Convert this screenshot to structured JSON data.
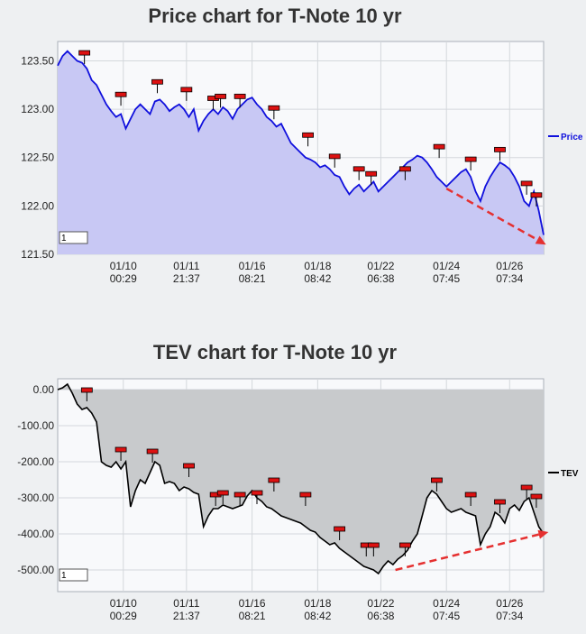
{
  "chart_data": [
    {
      "type": "area",
      "title": "Price chart for T-Note 10 yr",
      "legend": "Price",
      "legend_position": "right",
      "line_color": "#1010dd",
      "fill_color": "#c8c8f4",
      "ylim": [
        121.5,
        123.7
      ],
      "yticks": [
        "123.50",
        "123.00",
        "122.50",
        "122.00",
        "121.50"
      ],
      "ytick_values": [
        123.5,
        123.0,
        122.5,
        122.0,
        121.5
      ],
      "xlim": [
        0,
        100
      ],
      "xticks": [
        {
          "pos": 13.5,
          "date": "01/10",
          "time": "00:29"
        },
        {
          "pos": 26.5,
          "date": "01/11",
          "time": "21:37"
        },
        {
          "pos": 40.0,
          "date": "01/16",
          "time": "08:21"
        },
        {
          "pos": 53.5,
          "date": "01/18",
          "time": "08:42"
        },
        {
          "pos": 66.5,
          "date": "01/22",
          "time": "06:38"
        },
        {
          "pos": 80.0,
          "date": "01/24",
          "time": "07:45"
        },
        {
          "pos": 93.0,
          "date": "01/26",
          "time": "07:34"
        }
      ],
      "x": [
        0,
        1,
        2,
        3,
        4,
        5,
        6,
        7,
        8,
        9,
        10,
        11,
        12,
        13,
        14,
        15,
        16,
        17,
        18,
        19,
        20,
        21,
        22,
        23,
        24,
        25,
        26,
        27,
        28,
        29,
        30,
        31,
        32,
        33,
        34,
        35,
        36,
        37,
        38,
        39,
        40,
        41,
        42,
        43,
        44,
        45,
        46,
        47,
        48,
        49,
        50,
        51,
        52,
        53,
        54,
        55,
        56,
        57,
        58,
        59,
        60,
        61,
        62,
        63,
        64,
        65,
        66,
        67,
        68,
        69,
        70,
        71,
        72,
        73,
        74,
        75,
        76,
        77,
        78,
        79,
        80,
        81,
        82,
        83,
        84,
        85,
        86,
        87,
        88,
        89,
        90,
        91,
        92,
        93,
        94,
        95,
        96,
        97,
        98,
        99,
        100
      ],
      "values": [
        123.45,
        123.55,
        123.6,
        123.55,
        123.5,
        123.48,
        123.42,
        123.3,
        123.25,
        123.15,
        123.05,
        122.98,
        122.92,
        122.95,
        122.8,
        122.9,
        123.0,
        123.05,
        123.0,
        122.95,
        123.08,
        123.1,
        123.05,
        122.98,
        123.02,
        123.05,
        123.0,
        122.92,
        123.0,
        122.78,
        122.88,
        122.95,
        123.0,
        122.95,
        123.02,
        122.98,
        122.9,
        123.0,
        123.05,
        123.1,
        123.12,
        123.05,
        123.0,
        122.92,
        122.88,
        122.82,
        122.85,
        122.75,
        122.65,
        122.6,
        122.55,
        122.5,
        122.48,
        122.45,
        122.4,
        122.42,
        122.38,
        122.32,
        122.3,
        122.2,
        122.12,
        122.18,
        122.22,
        122.15,
        122.2,
        122.25,
        122.15,
        122.2,
        122.25,
        122.3,
        122.35,
        122.4,
        122.45,
        122.48,
        122.52,
        122.5,
        122.45,
        122.38,
        122.3,
        122.25,
        122.2,
        122.25,
        122.3,
        122.35,
        122.38,
        122.3,
        122.15,
        122.05,
        122.2,
        122.3,
        122.38,
        122.45,
        122.42,
        122.38,
        122.3,
        122.2,
        122.05,
        122.0,
        122.15,
        121.95,
        121.7
      ],
      "annotations": [
        {
          "x": 5.5,
          "y": 123.55
        },
        {
          "x": 13.0,
          "y": 123.12
        },
        {
          "x": 20.5,
          "y": 123.25
        },
        {
          "x": 26.5,
          "y": 123.17
        },
        {
          "x": 32.0,
          "y": 123.08
        },
        {
          "x": 33.5,
          "y": 123.1
        },
        {
          "x": 37.5,
          "y": 123.1
        },
        {
          "x": 44.5,
          "y": 122.98
        },
        {
          "x": 51.5,
          "y": 122.7
        },
        {
          "x": 57.0,
          "y": 122.48
        },
        {
          "x": 62.0,
          "y": 122.35
        },
        {
          "x": 64.5,
          "y": 122.3
        },
        {
          "x": 71.5,
          "y": 122.35
        },
        {
          "x": 78.5,
          "y": 122.58
        },
        {
          "x": 85.0,
          "y": 122.45
        },
        {
          "x": 91.0,
          "y": 122.55
        },
        {
          "x": 96.5,
          "y": 122.2
        },
        {
          "x": 98.5,
          "y": 122.08
        }
      ],
      "trend_arrow": {
        "x0": 80.0,
        "y0": 122.18,
        "x1": 100.5,
        "y1": 121.6
      }
    },
    {
      "type": "area",
      "title": "TEV chart for T-Note 10 yr",
      "legend": "TEV",
      "legend_position": "right",
      "line_color": "#000000",
      "fill_color": "#c8cacc",
      "ylim": [
        -560,
        30
      ],
      "yticks": [
        "0.00",
        "-100.00",
        "-200.00",
        "-300.00",
        "-400.00",
        "-500.00"
      ],
      "ytick_values": [
        0,
        -100,
        -200,
        -300,
        -400,
        -500
      ],
      "xlim": [
        0,
        100
      ],
      "xticks": [
        {
          "pos": 13.5,
          "date": "01/10",
          "time": "00:29"
        },
        {
          "pos": 26.5,
          "date": "01/11",
          "time": "21:37"
        },
        {
          "pos": 40.0,
          "date": "01/16",
          "time": "08:21"
        },
        {
          "pos": 53.5,
          "date": "01/18",
          "time": "08:42"
        },
        {
          "pos": 66.5,
          "date": "01/22",
          "time": "06:38"
        },
        {
          "pos": 80.0,
          "date": "01/24",
          "time": "07:45"
        },
        {
          "pos": 93.0,
          "date": "01/26",
          "time": "07:34"
        }
      ],
      "x": [
        0,
        1,
        2,
        3,
        4,
        5,
        6,
        7,
        8,
        9,
        10,
        11,
        12,
        13,
        14,
        15,
        16,
        17,
        18,
        19,
        20,
        21,
        22,
        23,
        24,
        25,
        26,
        27,
        28,
        29,
        30,
        31,
        32,
        33,
        34,
        35,
        36,
        37,
        38,
        39,
        40,
        41,
        42,
        43,
        44,
        45,
        46,
        47,
        48,
        49,
        50,
        51,
        52,
        53,
        54,
        55,
        56,
        57,
        58,
        59,
        60,
        61,
        62,
        63,
        64,
        65,
        66,
        67,
        68,
        69,
        70,
        71,
        72,
        73,
        74,
        75,
        76,
        77,
        78,
        79,
        80,
        81,
        82,
        83,
        84,
        85,
        86,
        87,
        88,
        89,
        90,
        91,
        92,
        93,
        94,
        95,
        96,
        97,
        98,
        99,
        100
      ],
      "values": [
        0,
        5,
        15,
        -10,
        -40,
        -55,
        -50,
        -65,
        -90,
        -200,
        -210,
        -215,
        -200,
        -220,
        -200,
        -325,
        -280,
        -250,
        -260,
        -230,
        -200,
        -210,
        -260,
        -255,
        -260,
        -280,
        -270,
        -275,
        -285,
        -290,
        -380,
        -350,
        -330,
        -330,
        -320,
        -325,
        -330,
        -325,
        -320,
        -295,
        -280,
        -300,
        -310,
        -325,
        -330,
        -340,
        -350,
        -355,
        -360,
        -365,
        -370,
        -380,
        -390,
        -395,
        -410,
        -420,
        -430,
        -425,
        -440,
        -450,
        -460,
        -470,
        -480,
        -490,
        -495,
        -500,
        -510,
        -490,
        -475,
        -485,
        -470,
        -460,
        -445,
        -420,
        -400,
        -350,
        -300,
        -280,
        -290,
        -310,
        -330,
        -340,
        -335,
        -330,
        -340,
        -345,
        -350,
        -430,
        -400,
        -380,
        -340,
        -350,
        -370,
        -330,
        -320,
        -335,
        -310,
        -300,
        -340,
        -380,
        -400
      ],
      "annotations": [
        {
          "x": 6.0,
          "y": -10
        },
        {
          "x": 13.0,
          "y": -175
        },
        {
          "x": 19.5,
          "y": -180
        },
        {
          "x": 27.0,
          "y": -220
        },
        {
          "x": 32.5,
          "y": -300
        },
        {
          "x": 34.0,
          "y": -295
        },
        {
          "x": 37.5,
          "y": -300
        },
        {
          "x": 41.0,
          "y": -295
        },
        {
          "x": 44.5,
          "y": -260
        },
        {
          "x": 51.0,
          "y": -300
        },
        {
          "x": 58.0,
          "y": -395
        },
        {
          "x": 63.5,
          "y": -440
        },
        {
          "x": 65.0,
          "y": -440
        },
        {
          "x": 71.5,
          "y": -440
        },
        {
          "x": 78.0,
          "y": -260
        },
        {
          "x": 85.0,
          "y": -300
        },
        {
          "x": 91.0,
          "y": -320
        },
        {
          "x": 96.5,
          "y": -280
        },
        {
          "x": 98.5,
          "y": -305
        }
      ],
      "trend_arrow": {
        "x0": 69.5,
        "y0": -500,
        "x1": 101.0,
        "y1": -395
      }
    }
  ],
  "box_label": "1"
}
